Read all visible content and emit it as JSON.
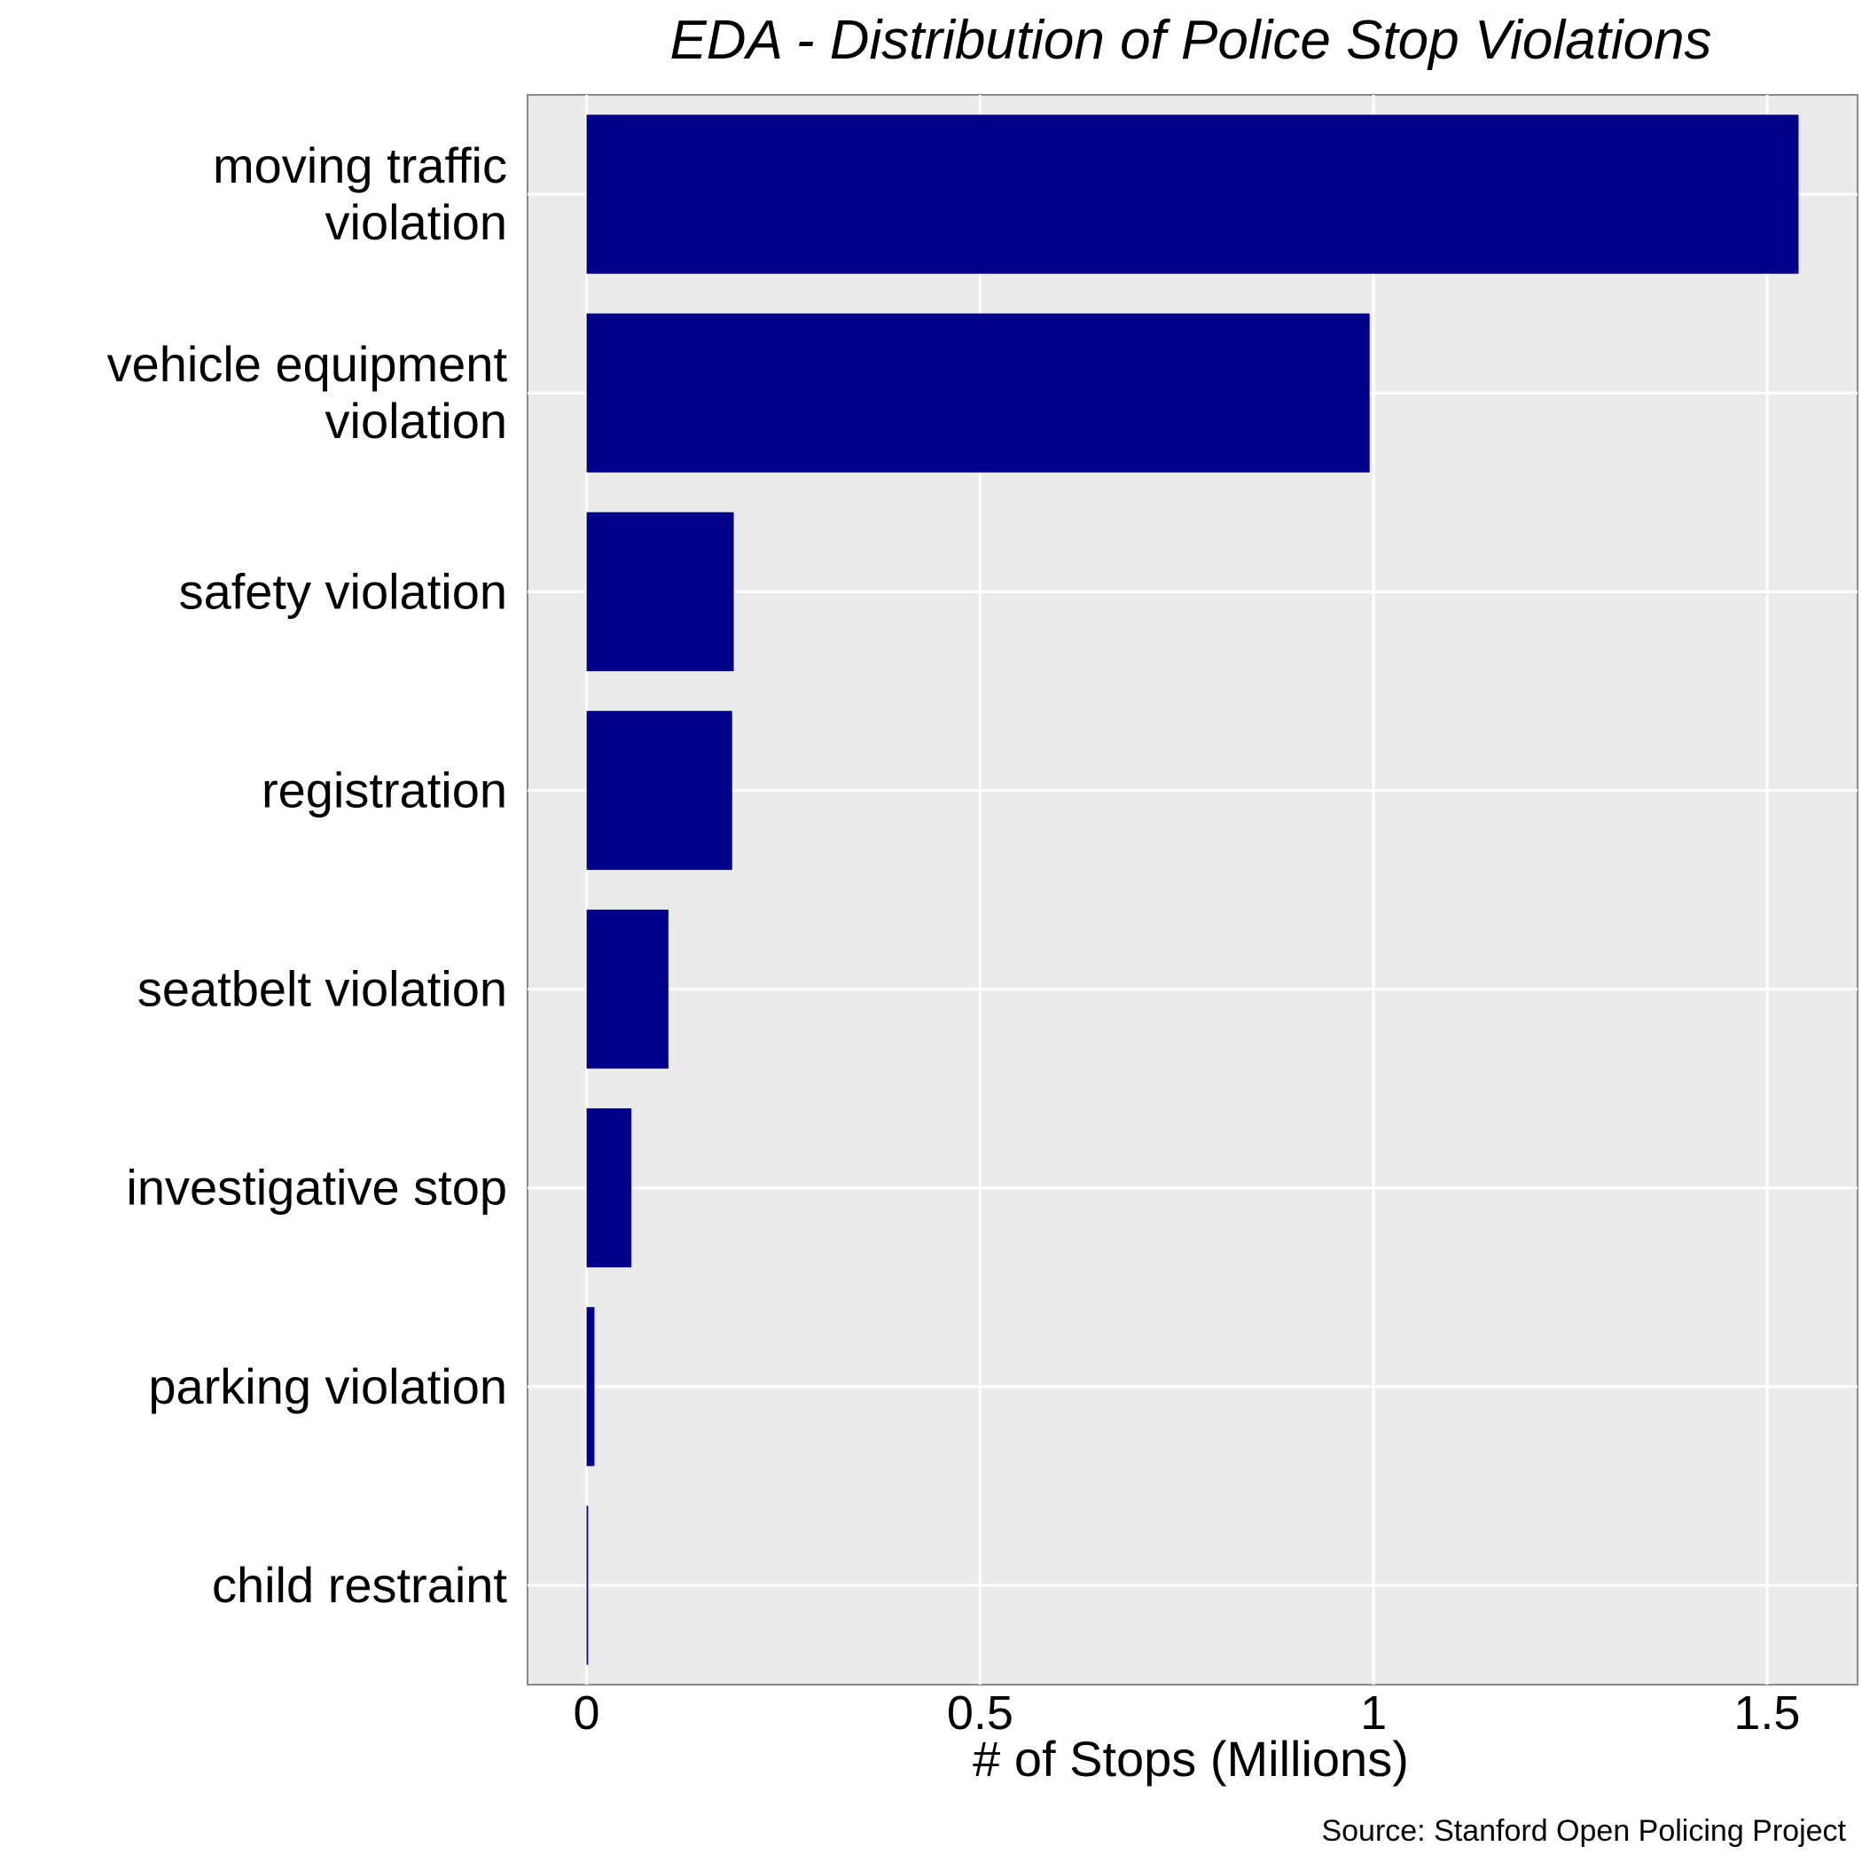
{
  "chart_data": {
    "type": "bar",
    "orientation": "horizontal",
    "title": "EDA - Distribution of Police Stop Violations",
    "xlabel": "# of Stops (Millions)",
    "ylabel": "",
    "caption": "Source: Stanford Open Policing Project",
    "categories": [
      "moving traffic violation",
      "vehicle equipment violation",
      "safety violation",
      "registration",
      "seatbelt violation",
      "investigative stop",
      "parking violation",
      "child restraint"
    ],
    "category_label_lines": [
      [
        "moving traffic",
        "violation"
      ],
      [
        "vehicle equipment",
        "violation"
      ],
      [
        "safety violation"
      ],
      [
        "registration"
      ],
      [
        "seatbelt violation"
      ],
      [
        "investigative stop"
      ],
      [
        "parking violation"
      ],
      [
        "child restraint"
      ]
    ],
    "values": [
      1.54,
      0.995,
      0.187,
      0.185,
      0.104,
      0.057,
      0.01,
      0.002
    ],
    "xlim": [
      -0.075,
      1.615
    ],
    "x_ticks": [
      0,
      0.5,
      1,
      1.5
    ],
    "x_tick_labels": [
      "0",
      "0.5",
      "1",
      "1.5"
    ],
    "bar_color": "#00008B",
    "panel_background": "#EBEBEB",
    "grid": true,
    "legend": "none"
  }
}
